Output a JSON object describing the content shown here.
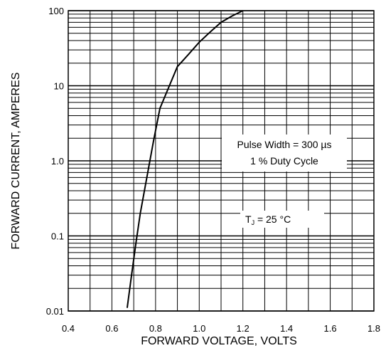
{
  "chart_data": {
    "type": "line",
    "title": "",
    "xlabel": "FORWARD VOLTAGE, VOLTS",
    "ylabel": "FORWARD CURRENT, AMPERES",
    "xscale": "linear",
    "yscale": "log",
    "xlim": [
      0.4,
      1.8
    ],
    "ylim": [
      0.01,
      100
    ],
    "grid": true,
    "x_ticks": [
      0.4,
      0.6,
      0.8,
      1.0,
      1.2,
      1.4,
      1.6,
      1.8
    ],
    "x_tick_labels": [
      "0.4",
      "0.6",
      "0.8",
      "1.0",
      "1.2",
      "1.4",
      "1.6",
      "1.8"
    ],
    "y_ticks": [
      0.01,
      0.1,
      1,
      10,
      100
    ],
    "y_tick_labels": [
      "0.01",
      "0.1",
      "1.0",
      "10",
      "100"
    ],
    "series": [
      {
        "x": [
          0.67,
          0.69,
          0.71,
          0.73,
          0.76,
          0.79,
          0.82,
          0.86,
          0.9,
          0.95,
          1.0,
          1.05,
          1.1,
          1.15,
          1.2
        ],
        "y": [
          0.011,
          0.03,
          0.08,
          0.2,
          0.6,
          1.8,
          5.0,
          9.5,
          18,
          26,
          38,
          52,
          70,
          85,
          100
        ]
      }
    ],
    "annotations": {
      "pulse_line1": "Pulse Width = 300 µs",
      "pulse_line2": "1 % Duty Cycle",
      "tj_prefix": "T",
      "tj_sub": "J",
      "tj_suffix": " = 25 °C"
    }
  }
}
